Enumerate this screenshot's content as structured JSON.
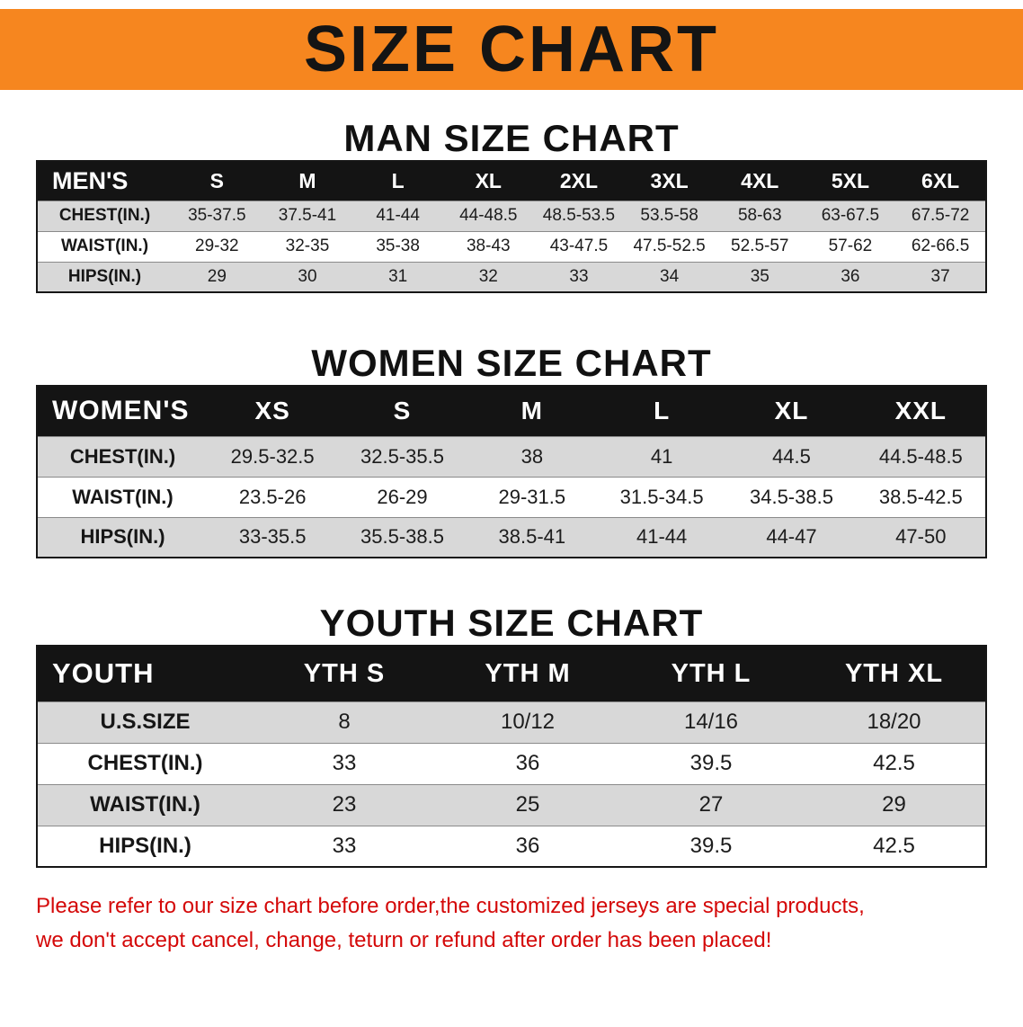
{
  "banner": {
    "title": "SIZE CHART"
  },
  "colors": {
    "banner_bg": "#f6861f",
    "header_bg": "#141414",
    "row_alt_bg": "#d8d8d8",
    "disclaimer_red": "#d40808"
  },
  "sections": [
    {
      "heading": "MAN SIZE CHART",
      "table": {
        "header": [
          "MEN'S",
          "S",
          "M",
          "L",
          "XL",
          "2XL",
          "3XL",
          "4XL",
          "5XL",
          "6XL"
        ],
        "rows": [
          {
            "label": "CHEST(IN.)",
            "values": [
              "35-37.5",
              "37.5-41",
              "41-44",
              "44-48.5",
              "48.5-53.5",
              "53.5-58",
              "58-63",
              "63-67.5",
              "67.5-72"
            ]
          },
          {
            "label": "WAIST(IN.)",
            "values": [
              "29-32",
              "32-35",
              "35-38",
              "38-43",
              "43-47.5",
              "47.5-52.5",
              "52.5-57",
              "57-62",
              "62-66.5"
            ]
          },
          {
            "label": "HIPS(IN.)",
            "values": [
              "29",
              "30",
              "31",
              "32",
              "33",
              "34",
              "35",
              "36",
              "37"
            ]
          }
        ]
      }
    },
    {
      "heading": "WOMEN SIZE CHART",
      "table": {
        "header": [
          "WOMEN'S",
          "XS",
          "S",
          "M",
          "L",
          "XL",
          "XXL"
        ],
        "rows": [
          {
            "label": "CHEST(IN.)",
            "values": [
              "29.5-32.5",
              "32.5-35.5",
              "38",
              "41",
              "44.5",
              "44.5-48.5"
            ]
          },
          {
            "label": "WAIST(IN.)",
            "values": [
              "23.5-26",
              "26-29",
              "29-31.5",
              "31.5-34.5",
              "34.5-38.5",
              "38.5-42.5"
            ]
          },
          {
            "label": "HIPS(IN.)",
            "values": [
              "33-35.5",
              "35.5-38.5",
              "38.5-41",
              "41-44",
              "44-47",
              "47-50"
            ]
          }
        ]
      }
    },
    {
      "heading": "YOUTH SIZE CHART",
      "table": {
        "header": [
          "YOUTH",
          "YTH S",
          "YTH M",
          "YTH L",
          "YTH XL"
        ],
        "rows": [
          {
            "label": "U.S.SIZE",
            "values": [
              "8",
              "10/12",
              "14/16",
              "18/20"
            ]
          },
          {
            "label": "CHEST(IN.)",
            "values": [
              "33",
              "36",
              "39.5",
              "42.5"
            ]
          },
          {
            "label": "WAIST(IN.)",
            "values": [
              "23",
              "25",
              "27",
              "29"
            ]
          },
          {
            "label": "HIPS(IN.)",
            "values": [
              "33",
              "36",
              "39.5",
              "42.5"
            ]
          }
        ]
      }
    }
  ],
  "disclaimer": {
    "line1": "Please refer to our size chart before order,the customized jerseys are special products,",
    "line2": "we don't accept cancel, change, teturn or refund after order has been placed!"
  }
}
